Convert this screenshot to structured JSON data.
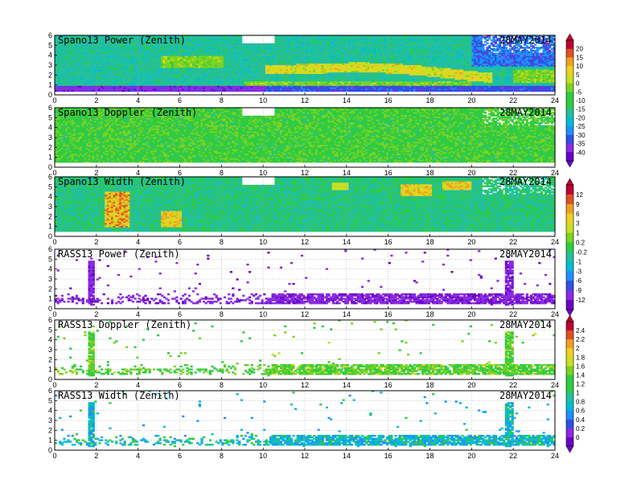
{
  "chart_data": [
    {
      "type": "heatmap",
      "title": "Spano13 Power (Zenith)",
      "date": "28MAY2014",
      "x_ticks": [
        "0",
        "2",
        "4",
        "6",
        "8",
        "10",
        "12",
        "14",
        "16",
        "18",
        "20",
        "22",
        "24"
      ],
      "y_ticks": [
        "0",
        "1",
        "2",
        "3",
        "4",
        "5",
        "6"
      ],
      "xlim": [
        0,
        24
      ],
      "ylim": [
        0,
        6
      ]
    },
    {
      "type": "heatmap",
      "title": "Spano13 Doppler (Zenith)",
      "date": "28MAY2014",
      "x_ticks": [
        "0",
        "2",
        "4",
        "6",
        "8",
        "10",
        "12",
        "14",
        "16",
        "18",
        "20",
        "22",
        "24"
      ],
      "y_ticks": [
        "0",
        "1",
        "2",
        "3",
        "4",
        "5",
        "6"
      ],
      "xlim": [
        0,
        24
      ],
      "ylim": [
        0,
        6
      ]
    },
    {
      "type": "heatmap",
      "title": "Spano13 Width (Zenith)",
      "date": "28MAY2014",
      "x_ticks": [
        "0",
        "2",
        "4",
        "6",
        "8",
        "10",
        "12",
        "14",
        "16",
        "18",
        "20",
        "22",
        "24"
      ],
      "y_ticks": [
        "0",
        "1",
        "2",
        "3",
        "4",
        "5",
        "6"
      ],
      "xlim": [
        0,
        24
      ],
      "ylim": [
        0,
        6
      ]
    },
    {
      "type": "heatmap",
      "title": "RASS13 Power (Zenith)",
      "date": "28MAY2014",
      "x_ticks": [
        "0",
        "2",
        "4",
        "6",
        "8",
        "10",
        "12",
        "14",
        "16",
        "18",
        "20",
        "22",
        "24"
      ],
      "y_ticks": [
        "0",
        "1",
        "2",
        "3",
        "4",
        "5",
        "6"
      ],
      "xlim": [
        0,
        24
      ],
      "ylim": [
        0,
        6
      ]
    },
    {
      "type": "heatmap",
      "title": "RASS13 Doppler (Zenith)",
      "date": "28MAY2014",
      "x_ticks": [
        "0",
        "2",
        "4",
        "6",
        "8",
        "10",
        "12",
        "14",
        "16",
        "18",
        "20",
        "22",
        "24"
      ],
      "y_ticks": [
        "0",
        "1",
        "2",
        "3",
        "4",
        "5",
        "6"
      ],
      "xlim": [
        0,
        24
      ],
      "ylim": [
        0,
        6
      ]
    },
    {
      "type": "heatmap",
      "title": "RASS13 Width (Zenith)",
      "date": "28MAY2014",
      "x_ticks": [
        "0",
        "2",
        "4",
        "6",
        "8",
        "10",
        "12",
        "14",
        "16",
        "18",
        "20",
        "22",
        "24"
      ],
      "y_ticks": [
        "0",
        "1",
        "2",
        "3",
        "4",
        "5",
        "6"
      ],
      "xlim": [
        0,
        24
      ],
      "ylim": [
        0,
        6
      ]
    }
  ],
  "colorbars": [
    {
      "name": "colorbar-power",
      "labels": [
        "20",
        "15",
        "10",
        "5",
        "0",
        "-5",
        "-10",
        "-15",
        "-20",
        "-25",
        "-30",
        "-35",
        "-40"
      ]
    },
    {
      "name": "colorbar-width",
      "labels": [
        "12",
        "9",
        "6",
        "3",
        "1",
        "0.2",
        "-0.2",
        "-1",
        "-3",
        "-6",
        "-9",
        "-12"
      ]
    },
    {
      "name": "colorbar-doppler",
      "labels": [
        "2.4",
        "2.2",
        "2",
        "1.8",
        "1.6",
        "1.4",
        "1.2",
        "1",
        "0.8",
        "0.6",
        "0.4",
        "0.2",
        "0"
      ]
    }
  ],
  "palette": [
    "#6a00c8",
    "#8a2be2",
    "#3050e0",
    "#1e90ff",
    "#00bcd4",
    "#20c0a0",
    "#2ecc40",
    "#7cd320",
    "#c8e020",
    "#f0d020",
    "#f0a020",
    "#e05020",
    "#c00030"
  ]
}
